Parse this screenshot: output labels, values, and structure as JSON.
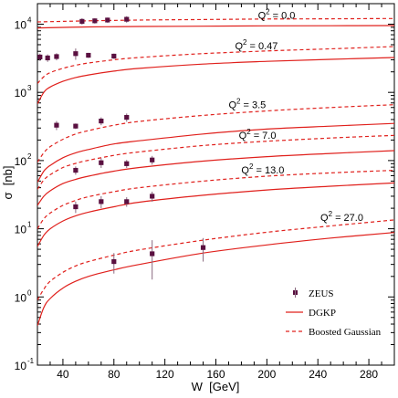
{
  "chart_data": {
    "type": "line",
    "xlabel": "W  [GeV]",
    "ylabel": "σ  [nb]",
    "xlim": [
      20,
      300
    ],
    "ylim": [
      0.1,
      20000
    ],
    "ylog": true,
    "x_ticks": [
      40,
      80,
      120,
      160,
      200,
      240,
      280
    ],
    "y_ticks": [
      {
        "value": 0.1,
        "base": "10",
        "exp": "-1"
      },
      {
        "value": 1,
        "base": "10",
        "exp": "0"
      },
      {
        "value": 10,
        "base": "10",
        "exp": "1"
      },
      {
        "value": 100,
        "base": "10",
        "exp": "2"
      },
      {
        "value": 1000,
        "base": "10",
        "exp": "3"
      },
      {
        "value": 10000,
        "base": "10",
        "exp": "4"
      }
    ],
    "legend": {
      "position": "bottom-right",
      "entries": [
        {
          "label": "ZEUS",
          "style": "marker"
        },
        {
          "label": "DGKP",
          "style": "solid"
        },
        {
          "label": "Boosted Gaussian",
          "style": "dashed"
        }
      ]
    },
    "colors": {
      "model": "#e0201c",
      "data": "#5a1040"
    },
    "annotations": [
      {
        "text": "Q",
        "sup": "2",
        "rest": " = 0.0",
        "x": 193,
        "y": 12000
      },
      {
        "text": "Q",
        "sup": "2",
        "rest": " = 0.47",
        "x": 175,
        "y": 4300
      },
      {
        "text": "Q",
        "sup": "2",
        "rest": " = 3.5",
        "x": 170,
        "y": 590
      },
      {
        "text": "Q",
        "sup": "2",
        "rest": " = 7.0",
        "x": 178,
        "y": 210
      },
      {
        "text": "Q",
        "sup": "2",
        "rest": " = 13.0",
        "x": 180,
        "y": 65
      },
      {
        "text": "Q",
        "sup": "2",
        "rest": " = 27.0",
        "x": 242,
        "y": 13
      }
    ],
    "series": [
      {
        "q2": "0.0",
        "dgkp": [
          [
            20,
            8800
          ],
          [
            60,
            9100
          ],
          [
            100,
            9250
          ],
          [
            150,
            9350
          ],
          [
            200,
            9450
          ],
          [
            250,
            9500
          ],
          [
            300,
            9550
          ]
        ],
        "bg": [
          [
            20,
            10800
          ],
          [
            60,
            11200
          ],
          [
            100,
            11500
          ],
          [
            150,
            11700
          ],
          [
            200,
            11900
          ],
          [
            250,
            12000
          ],
          [
            300,
            12100
          ]
        ],
        "data": [
          [
            55,
            11000,
            1200
          ],
          [
            65,
            11200,
            1000
          ],
          [
            75,
            11500,
            1000
          ],
          [
            90,
            11800,
            1300
          ]
        ]
      },
      {
        "q2": "0.47",
        "dgkp": [
          [
            20,
            680
          ],
          [
            25,
            1000
          ],
          [
            30,
            1200
          ],
          [
            40,
            1450
          ],
          [
            50,
            1650
          ],
          [
            60,
            1800
          ],
          [
            80,
            2050
          ],
          [
            100,
            2250
          ],
          [
            150,
            2600
          ],
          [
            200,
            2850
          ],
          [
            250,
            3050
          ],
          [
            300,
            3250
          ]
        ],
        "bg": [
          [
            20,
            1350
          ],
          [
            25,
            1700
          ],
          [
            30,
            1950
          ],
          [
            40,
            2250
          ],
          [
            50,
            2500
          ],
          [
            60,
            2700
          ],
          [
            80,
            3000
          ],
          [
            100,
            3250
          ],
          [
            150,
            3700
          ],
          [
            200,
            4050
          ],
          [
            250,
            4350
          ],
          [
            300,
            4700
          ]
        ],
        "data": [
          [
            22,
            3300,
            400
          ],
          [
            28,
            3200,
            400
          ],
          [
            35,
            3350,
            400
          ],
          [
            50,
            3700,
            700
          ],
          [
            60,
            3500,
            300
          ],
          [
            80,
            3400,
            300
          ]
        ]
      },
      {
        "q2": "3.5",
        "dgkp": [
          [
            20,
            48
          ],
          [
            25,
            70
          ],
          [
            30,
            85
          ],
          [
            40,
            110
          ],
          [
            50,
            130
          ],
          [
            60,
            145
          ],
          [
            80,
            175
          ],
          [
            100,
            195
          ],
          [
            150,
            245
          ],
          [
            200,
            290
          ],
          [
            250,
            320
          ],
          [
            300,
            350
          ]
        ],
        "bg": [
          [
            20,
            95
          ],
          [
            25,
            130
          ],
          [
            30,
            160
          ],
          [
            40,
            205
          ],
          [
            50,
            245
          ],
          [
            60,
            275
          ],
          [
            80,
            330
          ],
          [
            100,
            375
          ],
          [
            150,
            460
          ],
          [
            200,
            535
          ],
          [
            250,
            600
          ],
          [
            300,
            660
          ]
        ],
        "data": [
          [
            35,
            330,
            50
          ],
          [
            50,
            320,
            30
          ],
          [
            70,
            380,
            50
          ],
          [
            90,
            430,
            60
          ]
        ]
      },
      {
        "q2": "7.0",
        "dgkp": [
          [
            20,
            22
          ],
          [
            25,
            30
          ],
          [
            30,
            36
          ],
          [
            40,
            46
          ],
          [
            50,
            53
          ],
          [
            60,
            59
          ],
          [
            80,
            70
          ],
          [
            100,
            79
          ],
          [
            150,
            98
          ],
          [
            200,
            114
          ],
          [
            250,
            127
          ],
          [
            300,
            140
          ]
        ],
        "bg": [
          [
            20,
            38
          ],
          [
            25,
            52
          ],
          [
            30,
            62
          ],
          [
            40,
            79
          ],
          [
            50,
            91
          ],
          [
            60,
            101
          ],
          [
            80,
            119
          ],
          [
            100,
            134
          ],
          [
            150,
            166
          ],
          [
            200,
            192
          ],
          [
            250,
            214
          ],
          [
            300,
            234
          ]
        ],
        "data": [
          [
            50,
            72,
            10
          ],
          [
            70,
            93,
            15
          ],
          [
            90,
            90,
            12
          ],
          [
            110,
            102,
            15
          ]
        ]
      },
      {
        "q2": "13.0",
        "dgkp": [
          [
            20,
            5.5
          ],
          [
            25,
            8
          ],
          [
            30,
            10
          ],
          [
            40,
            13
          ],
          [
            50,
            15.5
          ],
          [
            60,
            17.5
          ],
          [
            80,
            21
          ],
          [
            100,
            24.5
          ],
          [
            150,
            31
          ],
          [
            200,
            37
          ],
          [
            250,
            42
          ],
          [
            300,
            47
          ]
        ],
        "bg": [
          [
            20,
            10
          ],
          [
            25,
            14
          ],
          [
            30,
            17
          ],
          [
            40,
            22
          ],
          [
            50,
            26
          ],
          [
            60,
            29.5
          ],
          [
            80,
            35
          ],
          [
            100,
            40
          ],
          [
            150,
            50
          ],
          [
            200,
            59
          ],
          [
            250,
            66
          ],
          [
            300,
            72
          ]
        ],
        "data": [
          [
            50,
            21,
            4
          ],
          [
            70,
            25,
            5
          ],
          [
            90,
            25,
            4
          ],
          [
            110,
            30,
            5
          ]
        ]
      },
      {
        "q2": "27.0",
        "dgkp": [
          [
            20,
            0.38
          ],
          [
            25,
            0.7
          ],
          [
            30,
            0.95
          ],
          [
            40,
            1.35
          ],
          [
            50,
            1.7
          ],
          [
            60,
            2
          ],
          [
            80,
            2.5
          ],
          [
            100,
            3
          ],
          [
            150,
            4.4
          ],
          [
            200,
            5.8
          ],
          [
            250,
            7.3
          ],
          [
            300,
            8.8
          ]
        ],
        "bg": [
          [
            20,
            0.9
          ],
          [
            25,
            1.3
          ],
          [
            30,
            1.7
          ],
          [
            40,
            2.3
          ],
          [
            50,
            2.85
          ],
          [
            60,
            3.3
          ],
          [
            80,
            4.1
          ],
          [
            100,
            4.9
          ],
          [
            150,
            6.8
          ],
          [
            200,
            8.9
          ],
          [
            250,
            11
          ],
          [
            300,
            13.5
          ]
        ],
        "data": [
          [
            80,
            3.3,
            1.1
          ],
          [
            110,
            4.3,
            2.5
          ],
          [
            150,
            5.3,
            2.0
          ]
        ]
      }
    ]
  }
}
